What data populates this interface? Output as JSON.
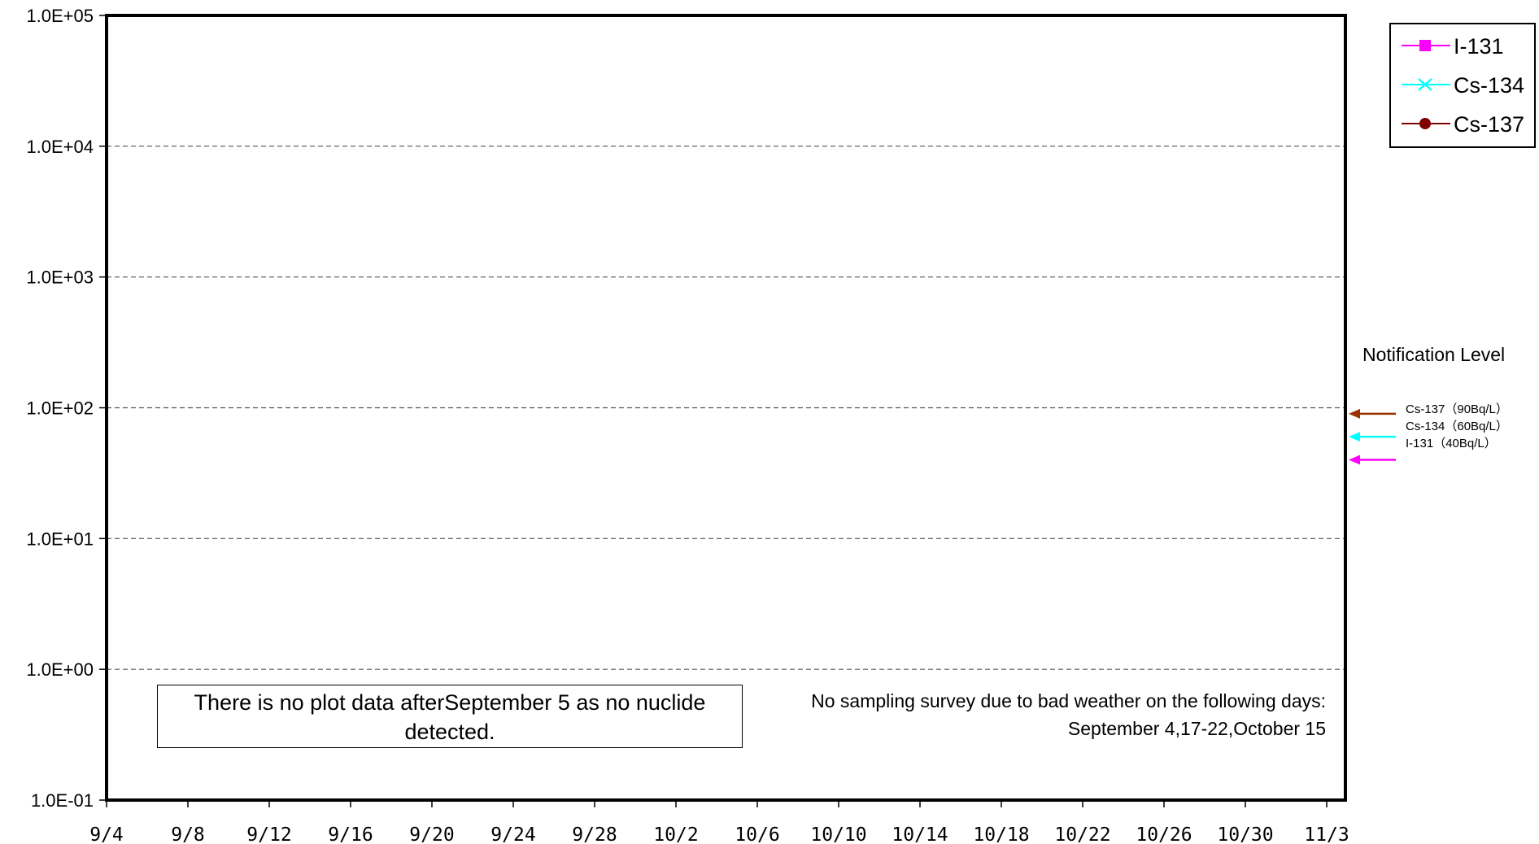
{
  "chart_data": {
    "type": "line",
    "y_scale": "log",
    "ylim": [
      0.1,
      100000
    ],
    "y_ticks": [
      "1.0E+05",
      "1.0E+04",
      "1.0E+03",
      "1.0E+02",
      "1.0E+01",
      "1.0E+00",
      "1.0E-01"
    ],
    "x_ticks": [
      "9/4",
      "9/8",
      "9/12",
      "9/16",
      "9/20",
      "9/24",
      "9/28",
      "10/2",
      "10/6",
      "10/10",
      "10/14",
      "10/18",
      "10/22",
      "10/26",
      "10/30",
      "11/3"
    ],
    "xlim": [
      "9/4",
      "11/3"
    ],
    "grid": "horizontal dashed",
    "series": [
      {
        "name": "I-131",
        "color": "#ff00ff",
        "marker": "square",
        "values": []
      },
      {
        "name": "Cs-134",
        "color": "#00ffff",
        "marker": "x",
        "values": []
      },
      {
        "name": "Cs-137",
        "color": "#800000",
        "marker": "circle",
        "values": []
      }
    ],
    "legend_position": "top-right",
    "notification_level": {
      "title": "Notification Level",
      "items": [
        {
          "label": "Cs-137（90Bq/L）",
          "value": 90,
          "color": "#993300"
        },
        {
          "label": "Cs-134（60Bq/L）",
          "value": 60,
          "color": "#00ffff"
        },
        {
          "label": "I-131（40Bq/L）",
          "value": 40,
          "color": "#ff00ff"
        }
      ]
    },
    "annotations": {
      "no_data_note": "There is no plot data afterSeptember 5 as no nuclide detected.",
      "weather_note_line1": "No sampling survey due to bad weather on the following days:",
      "weather_note_line2": "September 4,17-22,October 15"
    }
  }
}
